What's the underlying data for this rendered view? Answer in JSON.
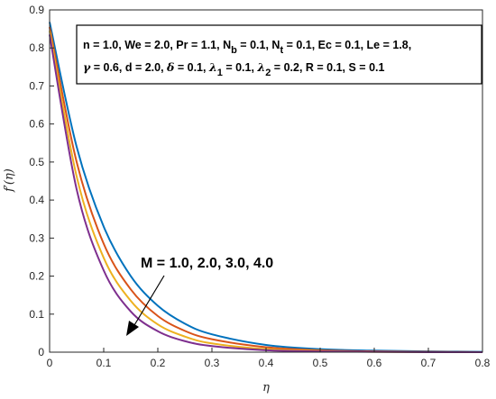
{
  "chart_data": {
    "type": "line",
    "xlabel": "η",
    "ylabel": "f′(η)",
    "xlim": [
      0,
      0.8
    ],
    "ylim": [
      0,
      0.9
    ],
    "xticks": [
      "0",
      "0.1",
      "0.2",
      "0.3",
      "0.4",
      "0.5",
      "0.6",
      "0.7",
      "0.8"
    ],
    "yticks": [
      "0",
      "0.1",
      "0.2",
      "0.3",
      "0.4",
      "0.5",
      "0.6",
      "0.7",
      "0.8",
      "0.9"
    ],
    "grid": false,
    "parameter_box": {
      "line1": "n = 1.0, We = 2.0, Pr = 1.1, N_b = 0.1, N_t = 0.1, Ec = 0.1, Le = 1.8,",
      "line2": "γ = 0.6, d = 2.0, δ = 0.1, λ_1 = 0.1, λ_2 = 0.2, R = 0.1, S = 0.1"
    },
    "annotation": "M = 1.0, 2.0, 3.0, 4.0",
    "series": [
      {
        "color": "#0072BD",
        "x": [
          0,
          0.05,
          0.1,
          0.15,
          0.2,
          0.25,
          0.3,
          0.4,
          0.5,
          0.6,
          0.7,
          0.8
        ],
        "y": [
          0.868,
          0.54,
          0.33,
          0.2,
          0.122,
          0.075,
          0.047,
          0.019,
          0.008,
          0.004,
          0.002,
          0.001
        ]
      },
      {
        "color": "#D95319",
        "x": [
          0,
          0.05,
          0.1,
          0.15,
          0.2,
          0.25,
          0.3,
          0.4,
          0.5,
          0.6,
          0.7,
          0.8
        ],
        "y": [
          0.855,
          0.5,
          0.285,
          0.165,
          0.095,
          0.056,
          0.034,
          0.013,
          0.005,
          0.002,
          0.001,
          0.0
        ]
      },
      {
        "color": "#EDB120",
        "x": [
          0,
          0.05,
          0.1,
          0.15,
          0.2,
          0.25,
          0.3,
          0.4,
          0.5,
          0.6,
          0.7,
          0.8
        ],
        "y": [
          0.845,
          0.462,
          0.248,
          0.135,
          0.073,
          0.041,
          0.023,
          0.008,
          0.003,
          0.001,
          0.0,
          0.0
        ]
      },
      {
        "color": "#7E2F8E",
        "x": [
          0,
          0.05,
          0.1,
          0.15,
          0.2,
          0.25,
          0.3,
          0.4,
          0.5,
          0.6,
          0.7,
          0.8
        ],
        "y": [
          0.835,
          0.428,
          0.215,
          0.107,
          0.055,
          0.029,
          0.016,
          0.005,
          0.002,
          0.001,
          0.0,
          0.0
        ]
      }
    ]
  }
}
